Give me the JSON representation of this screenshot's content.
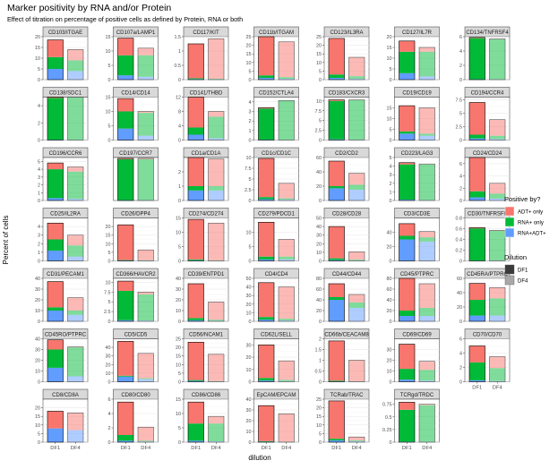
{
  "title": "Marker positivity by RNA and/or Protein",
  "subtitle": "Effect of titration on percentage of positive cells as defined by Protein, RNA or both",
  "ylabel": "Percent of cells",
  "xlabel": "dilution",
  "categories": [
    "DF1",
    "DF4"
  ],
  "legend_positive": {
    "title": "Positive by?",
    "items": [
      {
        "label": "ADT+ only",
        "color": "#F8766D"
      },
      {
        "label": "RNA+ only",
        "color": "#00BA38"
      },
      {
        "label": "RNA+ADT+",
        "color": "#619CFF"
      }
    ]
  },
  "legend_dilution": {
    "title": "Dilution",
    "items": [
      {
        "label": "DF1",
        "color": "#3a3a3a"
      },
      {
        "label": "DF4",
        "color": "#a8a8a8"
      }
    ]
  },
  "chart_data": {
    "type": "bar",
    "stacked": true,
    "faceted": true,
    "legend_position": "right",
    "grid": true,
    "series_order": [
      "RNA+ADT+",
      "RNA+ only",
      "ADT+ only"
    ],
    "panels": [
      {
        "name": "CD103/ITGAE",
        "ymax": 20,
        "ticks": [
          0,
          5,
          10,
          15,
          20
        ],
        "DF1": [
          5,
          5.5,
          8
        ],
        "DF4": [
          4,
          5,
          5
        ]
      },
      {
        "name": "CD107a/LAMP1",
        "ymax": 15,
        "ticks": [
          0,
          5,
          10,
          15
        ],
        "DF1": [
          1.5,
          7,
          6
        ],
        "DF4": [
          1,
          7.5,
          2.5
        ]
      },
      {
        "name": "CD117/KIT",
        "ymax": 1.5,
        "ticks": [
          0.0,
          0.5,
          1.0,
          1.5
        ],
        "DF1": [
          0.02,
          0.03,
          1.2
        ],
        "DF4": [
          0.01,
          0.02,
          1.4
        ]
      },
      {
        "name": "CD11b/ITGAM",
        "ymax": 25,
        "ticks": [
          0,
          5,
          10,
          15,
          20,
          25
        ],
        "DF1": [
          1,
          1.5,
          22.5
        ],
        "DF4": [
          0.5,
          1,
          20.5
        ]
      },
      {
        "name": "CD123/IL3RA",
        "ymax": 25,
        "ticks": [
          0,
          5,
          10,
          15,
          20,
          25
        ],
        "DF1": [
          1,
          2,
          21
        ],
        "DF4": [
          0.5,
          1.5,
          11
        ]
      },
      {
        "name": "CD127/IL7R",
        "ymax": 20,
        "ticks": [
          0,
          5,
          10,
          15,
          20
        ],
        "DF1": [
          3,
          10,
          5
        ],
        "DF4": [
          1.5,
          11.5,
          2
        ]
      },
      {
        "name": "CD134/TNFRSF4",
        "ymax": 6,
        "ticks": [
          0,
          2,
          4,
          6
        ],
        "DF1": [
          0.05,
          5.75,
          0.1
        ],
        "DF4": [
          0.05,
          5.6,
          0.05
        ]
      },
      {
        "name": "CD138/SDC1",
        "ymax": 5,
        "ticks": [
          0,
          2,
          4
        ],
        "DF1": [
          0.05,
          4.85,
          0.1
        ],
        "DF4": [
          0.02,
          4.96,
          0.02
        ]
      },
      {
        "name": "CD14/CD14",
        "ymax": 15,
        "ticks": [
          0,
          5,
          10,
          15
        ],
        "DF1": [
          4,
          6,
          4.5
        ],
        "DF4": [
          1.5,
          8,
          0.5
        ]
      },
      {
        "name": "CD141/THBD",
        "ymax": 12,
        "ticks": [
          0,
          4,
          8,
          12
        ],
        "DF1": [
          1.5,
          2,
          8.5
        ],
        "DF4": [
          0.5,
          6,
          1.5
        ]
      },
      {
        "name": "CD152/CTLA4",
        "ymax": 4.5,
        "ticks": [
          0,
          1,
          2,
          3,
          4
        ],
        "DF1": [
          0.05,
          3.25,
          0.1
        ],
        "DF4": [
          0.02,
          4.1,
          0.02
        ]
      },
      {
        "name": "CD183/CXCR3",
        "ymax": 11,
        "ticks": [
          0.0,
          2.5,
          5.0,
          7.5,
          10.0
        ],
        "DF1": [
          0.2,
          9.8,
          0.3
        ],
        "DF4": [
          0.1,
          10.1,
          0.1
        ]
      },
      {
        "name": "CD19/CD19",
        "ymax": 20,
        "ticks": [
          0,
          5,
          10,
          15
        ],
        "DF1": [
          3,
          1,
          12
        ],
        "DF4": [
          2,
          1,
          12
        ]
      },
      {
        "name": "CD194/CCR4",
        "ymax": 8,
        "ticks": [
          0.0,
          2.5,
          5.0,
          7.5
        ],
        "DF1": [
          0.3,
          0.7,
          6
        ],
        "DF4": [
          0.2,
          0.6,
          3
        ]
      },
      {
        "name": "CD196/CCR6",
        "ymax": 5.5,
        "ticks": [
          0,
          1,
          2,
          3,
          4,
          5
        ],
        "DF1": [
          0.3,
          3.7,
          0.8
        ],
        "DF4": [
          0.2,
          3.5,
          0.6
        ]
      },
      {
        "name": "CD197/CCR7",
        "ymax": 1,
        "ticks": [],
        "DF1": [
          0.01,
          0.95,
          0.02
        ],
        "DF4": [
          0.01,
          0.95,
          0.02
        ]
      },
      {
        "name": "CD1a/CD1A",
        "ymax": 3,
        "ticks": [
          0,
          1,
          2
        ],
        "DF1": [
          0.7,
          0.3,
          2
        ],
        "DF4": [
          0.7,
          0.3,
          1.9
        ]
      },
      {
        "name": "CD1c/CD1C",
        "ymax": 10,
        "ticks": [
          0.0,
          2.5,
          5.0,
          7.5,
          10.0
        ],
        "DF1": [
          0.3,
          0.5,
          9
        ],
        "DF4": [
          0.2,
          0.3,
          3.5
        ]
      },
      {
        "name": "CD2/CD2",
        "ymax": 60,
        "ticks": [
          0,
          20,
          40,
          60
        ],
        "DF1": [
          17,
          3,
          35
        ],
        "DF4": [
          15,
          7,
          16
        ]
      },
      {
        "name": "CD223/LAG3",
        "ymax": 5,
        "ticks": [
          0,
          1,
          2,
          3,
          4,
          5
        ],
        "DF1": [
          0.1,
          4.1,
          0.2
        ],
        "DF4": [
          0.05,
          4.15,
          0.05
        ]
      },
      {
        "name": "CD24/CD24",
        "ymax": 7,
        "ticks": [
          0,
          2,
          4,
          6
        ],
        "DF1": [
          0.5,
          1,
          5.5
        ],
        "DF4": [
          0.3,
          0.8,
          1.7
        ]
      },
      {
        "name": "CD25/IL2RA",
        "ymax": 5,
        "ticks": [
          0,
          1,
          2,
          3,
          4
        ],
        "DF1": [
          1.2,
          1.3,
          1.9
        ],
        "DF4": [
          0.5,
          1.3,
          1.2
        ]
      },
      {
        "name": "CD26/DPP4",
        "ymax": 25,
        "ticks": [
          0,
          5,
          10,
          15,
          20
        ],
        "DF1": [
          0.3,
          0.2,
          20.5
        ],
        "DF4": [
          0.2,
          0.2,
          6
        ]
      },
      {
        "name": "CD274/CD274",
        "ymax": 15,
        "ticks": [
          0,
          5,
          10,
          15
        ],
        "DF1": [
          0.2,
          0.3,
          14
        ],
        "DF4": [
          0.1,
          0.1,
          13
        ]
      },
      {
        "name": "CD279/PDCD1",
        "ymax": 15,
        "ticks": [
          0,
          5,
          10
        ],
        "DF1": [
          0.5,
          1,
          12
        ],
        "DF4": [
          0.5,
          1,
          6
        ]
      },
      {
        "name": "CD28/CD28",
        "ymax": 50,
        "ticks": [
          0,
          10,
          20,
          30,
          40,
          50
        ],
        "DF1": [
          1,
          2,
          37
        ],
        "DF4": [
          0.5,
          1,
          9
        ]
      },
      {
        "name": "CD3/CD3E",
        "ymax": 60,
        "ticks": [
          0,
          20,
          40
        ],
        "DF1": [
          30,
          5,
          17
        ],
        "DF4": [
          27,
          6,
          8
        ]
      },
      {
        "name": "CD30/TNFRSF8",
        "ymax": 0.8,
        "ticks": [
          0.0,
          0.2,
          0.4,
          0.6,
          0.8
        ],
        "DF1": [
          0.005,
          0.6,
          0.015
        ],
        "DF4": [
          0.005,
          0.555,
          0.01
        ]
      },
      {
        "name": "CD31/PECAM1",
        "ymax": 40,
        "ticks": [
          0,
          10,
          20,
          30,
          40
        ],
        "DF1": [
          10,
          3,
          24
        ],
        "DF4": [
          6,
          4,
          12
        ]
      },
      {
        "name": "CD366/HAVCR2",
        "ymax": 11,
        "ticks": [
          0.0,
          2.5,
          5.0,
          7.5,
          10.0
        ],
        "DF1": [
          0.3,
          7.5,
          2.5
        ],
        "DF4": [
          0.2,
          6.7,
          0.6
        ]
      },
      {
        "name": "CD39/ENTPD1",
        "ymax": 40,
        "ticks": [
          0,
          10,
          20,
          30,
          40
        ],
        "DF1": [
          1,
          2,
          32
        ],
        "DF4": [
          0.5,
          1,
          16.5
        ]
      },
      {
        "name": "CD4/CD4",
        "ymax": 50,
        "ticks": [
          0,
          10,
          20,
          30,
          40,
          50
        ],
        "DF1": [
          2,
          3,
          40
        ],
        "DF4": [
          1,
          2,
          37
        ]
      },
      {
        "name": "CD44/CD44",
        "ymax": 80,
        "ticks": [
          0,
          20,
          40,
          60,
          80
        ],
        "DF1": [
          40,
          5,
          25
        ],
        "DF4": [
          25,
          10,
          15
        ]
      },
      {
        "name": "CD45/PTPRC",
        "ymax": 80,
        "ticks": [
          0,
          20,
          40,
          60,
          80
        ],
        "DF1": [
          10,
          10,
          60
        ],
        "DF4": [
          10,
          15,
          45
        ]
      },
      {
        "name": "CD45RA/PTPRC",
        "ymax": 60,
        "ticks": [
          0,
          20,
          40,
          60
        ],
        "DF1": [
          8,
          22,
          23
        ],
        "DF4": [
          8,
          24,
          15
        ]
      },
      {
        "name": "CD45RO/PTPRC",
        "ymax": 40,
        "ticks": [
          0,
          10,
          20,
          30,
          40
        ],
        "DF1": [
          13,
          17,
          9
        ],
        "DF4": [
          5,
          27,
          0.5
        ]
      },
      {
        "name": "CD5/CD5",
        "ymax": 50,
        "ticks": [
          0,
          10,
          20,
          30,
          40
        ],
        "DF1": [
          6,
          1,
          40
        ],
        "DF4": [
          3,
          1,
          29
        ]
      },
      {
        "name": "CD56/NCAM1",
        "ymax": 25,
        "ticks": [
          0,
          5,
          10,
          15,
          20,
          25
        ],
        "DF1": [
          0.5,
          0.5,
          22
        ],
        "DF4": [
          0.2,
          0.2,
          15.6
        ]
      },
      {
        "name": "CD62L/SELL",
        "ymax": 35,
        "ticks": [
          0,
          10,
          20,
          30
        ],
        "DF1": [
          1,
          2,
          27
        ],
        "DF4": [
          0.5,
          1,
          15.5
        ]
      },
      {
        "name": "CD66b/CEACAM8",
        "ymax": 2,
        "ticks": [
          0.0,
          0.5,
          1.0,
          1.5,
          2.0
        ],
        "DF1": [
          0.02,
          0.03,
          1.85
        ],
        "DF4": [
          0.01,
          0.01,
          0.98
        ]
      },
      {
        "name": "CD69/CD69",
        "ymax": 40,
        "ticks": [
          0,
          10,
          20,
          30
        ],
        "DF1": [
          2,
          10,
          23
        ],
        "DF4": [
          1,
          10,
          8
        ]
      },
      {
        "name": "CD70/CD70",
        "ymax": 6,
        "ticks": [
          0,
          2,
          4,
          6
        ],
        "DF1": [
          0.2,
          2.5,
          2.3
        ],
        "DF4": [
          0.1,
          1.8,
          1.6
        ]
      },
      {
        "name": "CD8/CD8A",
        "ymax": 25,
        "ticks": [
          0,
          5,
          10,
          15,
          20
        ],
        "DF1": [
          8,
          0,
          10
        ],
        "DF4": [
          7,
          0,
          10
        ]
      },
      {
        "name": "CD80/CD80",
        "ymax": 6,
        "ticks": [
          0,
          2,
          4,
          6
        ],
        "DF1": [
          0.2,
          0.8,
          4.6
        ],
        "DF4": [
          0.1,
          0.1,
          1.9
        ]
      },
      {
        "name": "CD86/CD86",
        "ymax": 15,
        "ticks": [
          0,
          5,
          10,
          15
        ],
        "DF1": [
          0.5,
          6,
          7.5
        ],
        "DF4": [
          0.3,
          6.2,
          2.5
        ]
      },
      {
        "name": "EpCAM/EPCAM",
        "ymax": 40,
        "ticks": [
          0,
          10,
          20,
          30,
          40
        ],
        "DF1": [
          0.5,
          0.5,
          33
        ],
        "DF4": [
          0.2,
          0.2,
          26
        ]
      },
      {
        "name": "TCRab/TRAC",
        "ymax": 25,
        "ticks": [
          0,
          5,
          10,
          15,
          20,
          25
        ],
        "DF1": [
          1,
          1,
          22
        ],
        "DF4": [
          0.5,
          0.5,
          2
        ]
      },
      {
        "name": "TCRgd/TRDC",
        "ymax": 0.85,
        "ticks": [
          0.0,
          0.25,
          0.5,
          0.75
        ],
        "DF1": [
          0.01,
          0.63,
          0.15
        ],
        "DF4": [
          0.01,
          0.72,
          0.02
        ]
      }
    ]
  }
}
